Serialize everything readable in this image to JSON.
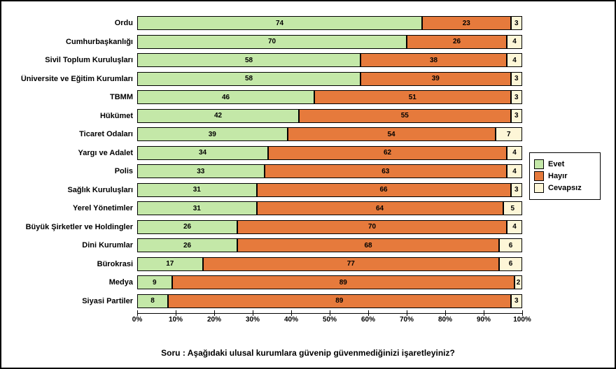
{
  "caption": "Soru : Aşağıdaki ulusal kurumlara güvenip güvenmediğinizi işaretleyiniz?",
  "colors": {
    "evet": "#c4e8a8",
    "hayir": "#e67a3c",
    "cevapsiz": "#fdf6d7",
    "border": "#000000",
    "background": "#ffffff"
  },
  "legend": [
    {
      "key": "evet",
      "label": "Evet"
    },
    {
      "key": "hayir",
      "label": "Hayır"
    },
    {
      "key": "cevapsiz",
      "label": "Cevapsız"
    }
  ],
  "x_axis": {
    "min": 0,
    "max": 100,
    "step": 10,
    "suffix": "%"
  },
  "rows": [
    {
      "label": "Ordu",
      "evet": 74,
      "hayir": 23,
      "cevapsiz": 3
    },
    {
      "label": "Cumhurbaşkanlığı",
      "evet": 70,
      "hayir": 26,
      "cevapsiz": 4
    },
    {
      "label": "Sivil Toplum Kuruluşları",
      "evet": 58,
      "hayir": 38,
      "cevapsiz": 4
    },
    {
      "label": "Üniversite ve Eğitim Kurumları",
      "evet": 58,
      "hayir": 39,
      "cevapsiz": 3
    },
    {
      "label": "TBMM",
      "evet": 46,
      "hayir": 51,
      "cevapsiz": 3
    },
    {
      "label": "Hükümet",
      "evet": 42,
      "hayir": 55,
      "cevapsiz": 3
    },
    {
      "label": "Ticaret Odaları",
      "evet": 39,
      "hayir": 54,
      "cevapsiz": 7
    },
    {
      "label": "Yargı ve Adalet",
      "evet": 34,
      "hayir": 62,
      "cevapsiz": 4
    },
    {
      "label": "Polis",
      "evet": 33,
      "hayir": 63,
      "cevapsiz": 4
    },
    {
      "label": "Sağlık Kuruluşları",
      "evet": 31,
      "hayir": 66,
      "cevapsiz": 3
    },
    {
      "label": "Yerel Yönetimler",
      "evet": 31,
      "hayir": 64,
      "cevapsiz": 5
    },
    {
      "label": "Büyük Şirketler ve Holdingler",
      "evet": 26,
      "hayir": 70,
      "cevapsiz": 4
    },
    {
      "label": "Dini Kurumlar",
      "evet": 26,
      "hayir": 68,
      "cevapsiz": 6
    },
    {
      "label": "Bürokrasi",
      "evet": 17,
      "hayir": 77,
      "cevapsiz": 6
    },
    {
      "label": "Medya",
      "evet": 9,
      "hayir": 89,
      "cevapsiz": 2
    },
    {
      "label": "Siyasi Partiler",
      "evet": 8,
      "hayir": 89,
      "cevapsiz": 3
    }
  ]
}
